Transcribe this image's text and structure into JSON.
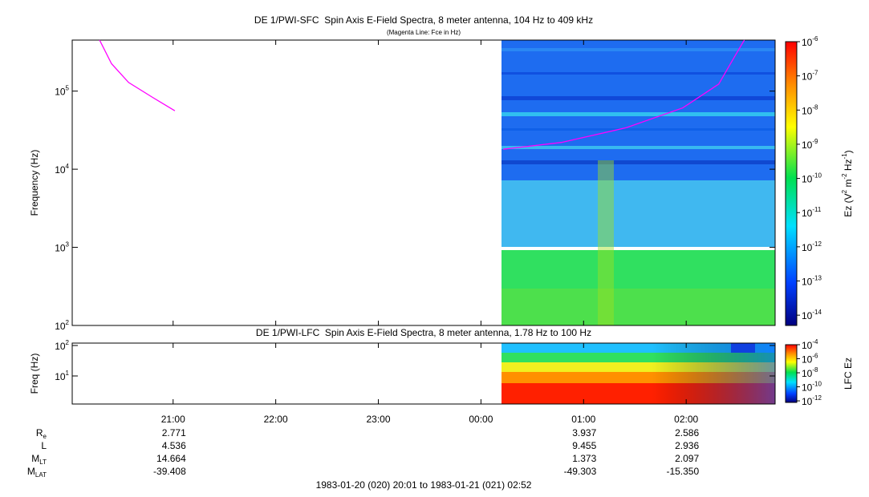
{
  "chart_data": [
    {
      "type": "spectrogram",
      "title": "DE 1/PWI-SFC  Spin Axis E-Field Spectra, 8 meter antenna, 104 Hz to 409 kHz",
      "subtitle": "(Magenta Line: Fce in Hz)",
      "ylabel": "Frequency (Hz)",
      "log_y": true,
      "ylim": [
        100,
        450000
      ],
      "yticks": [
        {
          "value": 100,
          "label": "10",
          "sup": "2"
        },
        {
          "value": 1000,
          "label": "10",
          "sup": "3"
        },
        {
          "value": 10000,
          "label": "10",
          "sup": "4"
        },
        {
          "value": 100000,
          "label": "10",
          "sup": "5"
        }
      ],
      "series": [
        {
          "name": "Fce",
          "color": "#ff00ff",
          "x": [
            "1983-01-20T20:17",
            "1983-01-20T20:24",
            "1983-01-20T20:34",
            "1983-01-20T20:48",
            "1983-01-20T21:01",
            "1983-01-20T22:00",
            "1983-01-21T00:13",
            "1983-01-21T00:47",
            "1983-01-21T01:25",
            "1983-01-21T01:58",
            "1983-01-21T02:19",
            "1983-01-21T02:28",
            "1983-01-21T02:34"
          ],
          "values": [
            450000,
            224000,
            129000,
            83000,
            56000,
            null,
            18000,
            22000,
            34000,
            61000,
            123000,
            269000,
            450000
          ]
        }
      ],
      "colorbar": {
        "label_parts": [
          "Ez (V",
          "2",
          " m",
          "-2",
          " Hz",
          "-1",
          ")"
        ],
        "zlim": [
          1e-06,
          5e-15
        ],
        "zticks": [
          {
            "value": 1e-06,
            "label": "10",
            "sup": "-6"
          },
          {
            "value": 1e-07,
            "label": "10",
            "sup": "-7"
          },
          {
            "value": 1e-08,
            "label": "10",
            "sup": "-8"
          },
          {
            "value": 1e-09,
            "label": "10",
            "sup": "-9"
          },
          {
            "value": 1e-10,
            "label": "10",
            "sup": "-10"
          },
          {
            "value": 1e-11,
            "label": "10",
            "sup": "-11"
          },
          {
            "value": 1e-12,
            "label": "10",
            "sup": "-12"
          },
          {
            "value": 1e-13,
            "label": "10",
            "sup": "-13"
          },
          {
            "value": 1e-14,
            "label": "10",
            "sup": "-14"
          }
        ]
      }
    },
    {
      "type": "spectrogram",
      "title": "DE 1/PWI-LFC  Spin Axis E-Field Spectra, 8 meter antenna, 1.78 Hz to 100 Hz",
      "ylabel": "Freq (Hz)",
      "log_y": true,
      "ylim": [
        1.2,
        120
      ],
      "yticks": [
        {
          "value": 10,
          "label": "10",
          "sup": "1"
        },
        {
          "value": 100,
          "label": "10",
          "sup": "2"
        }
      ],
      "xlim": [
        "1983-01-20T20:01",
        "1983-01-21T02:52"
      ],
      "xticks": [
        {
          "value": "1983-01-20T21:00",
          "label": "21:00"
        },
        {
          "value": "1983-01-20T22:00",
          "label": "22:00"
        },
        {
          "value": "1983-01-20T23:00",
          "label": "23:00"
        },
        {
          "value": "1983-01-21T00:00",
          "label": "00:00"
        },
        {
          "value": "1983-01-21T01:00",
          "label": "01:00"
        },
        {
          "value": "1983-01-21T02:00",
          "label": "02:00"
        }
      ],
      "colorbar": {
        "label_parts": [
          "LFC Ez"
        ],
        "zlim": [
          0.0001,
          6e-13
        ],
        "zticks": [
          {
            "value": 0.0001,
            "label": "10",
            "sup": "-4"
          },
          {
            "value": 1e-06,
            "label": "10",
            "sup": "-6"
          },
          {
            "value": 1e-08,
            "label": "10",
            "sup": "-8"
          },
          {
            "value": 1e-10,
            "label": "10",
            "sup": "-10"
          },
          {
            "value": 1e-12,
            "label": "10",
            "sup": "-12"
          }
        ]
      }
    }
  ],
  "ephemeris": {
    "times": [
      "1983-01-20T21:00",
      "1983-01-21T01:00",
      "1983-01-21T02:00"
    ],
    "rows": [
      {
        "label": "R",
        "sub": "e",
        "values": [
          "2.771",
          "3.937",
          "2.586"
        ]
      },
      {
        "label": "L",
        "sub": "",
        "values": [
          "4.536",
          "9.455",
          "2.936"
        ]
      },
      {
        "label": "M",
        "sub": "LT",
        "values": [
          "14.664",
          "1.373",
          "2.097"
        ]
      },
      {
        "label": "M",
        "sub": "LAT",
        "values": [
          "-39.408",
          "-49.303",
          "-15.350"
        ]
      }
    ]
  },
  "time_range": "1983-01-20 (020) 20:01 to 1983-01-21 (021) 02:52"
}
